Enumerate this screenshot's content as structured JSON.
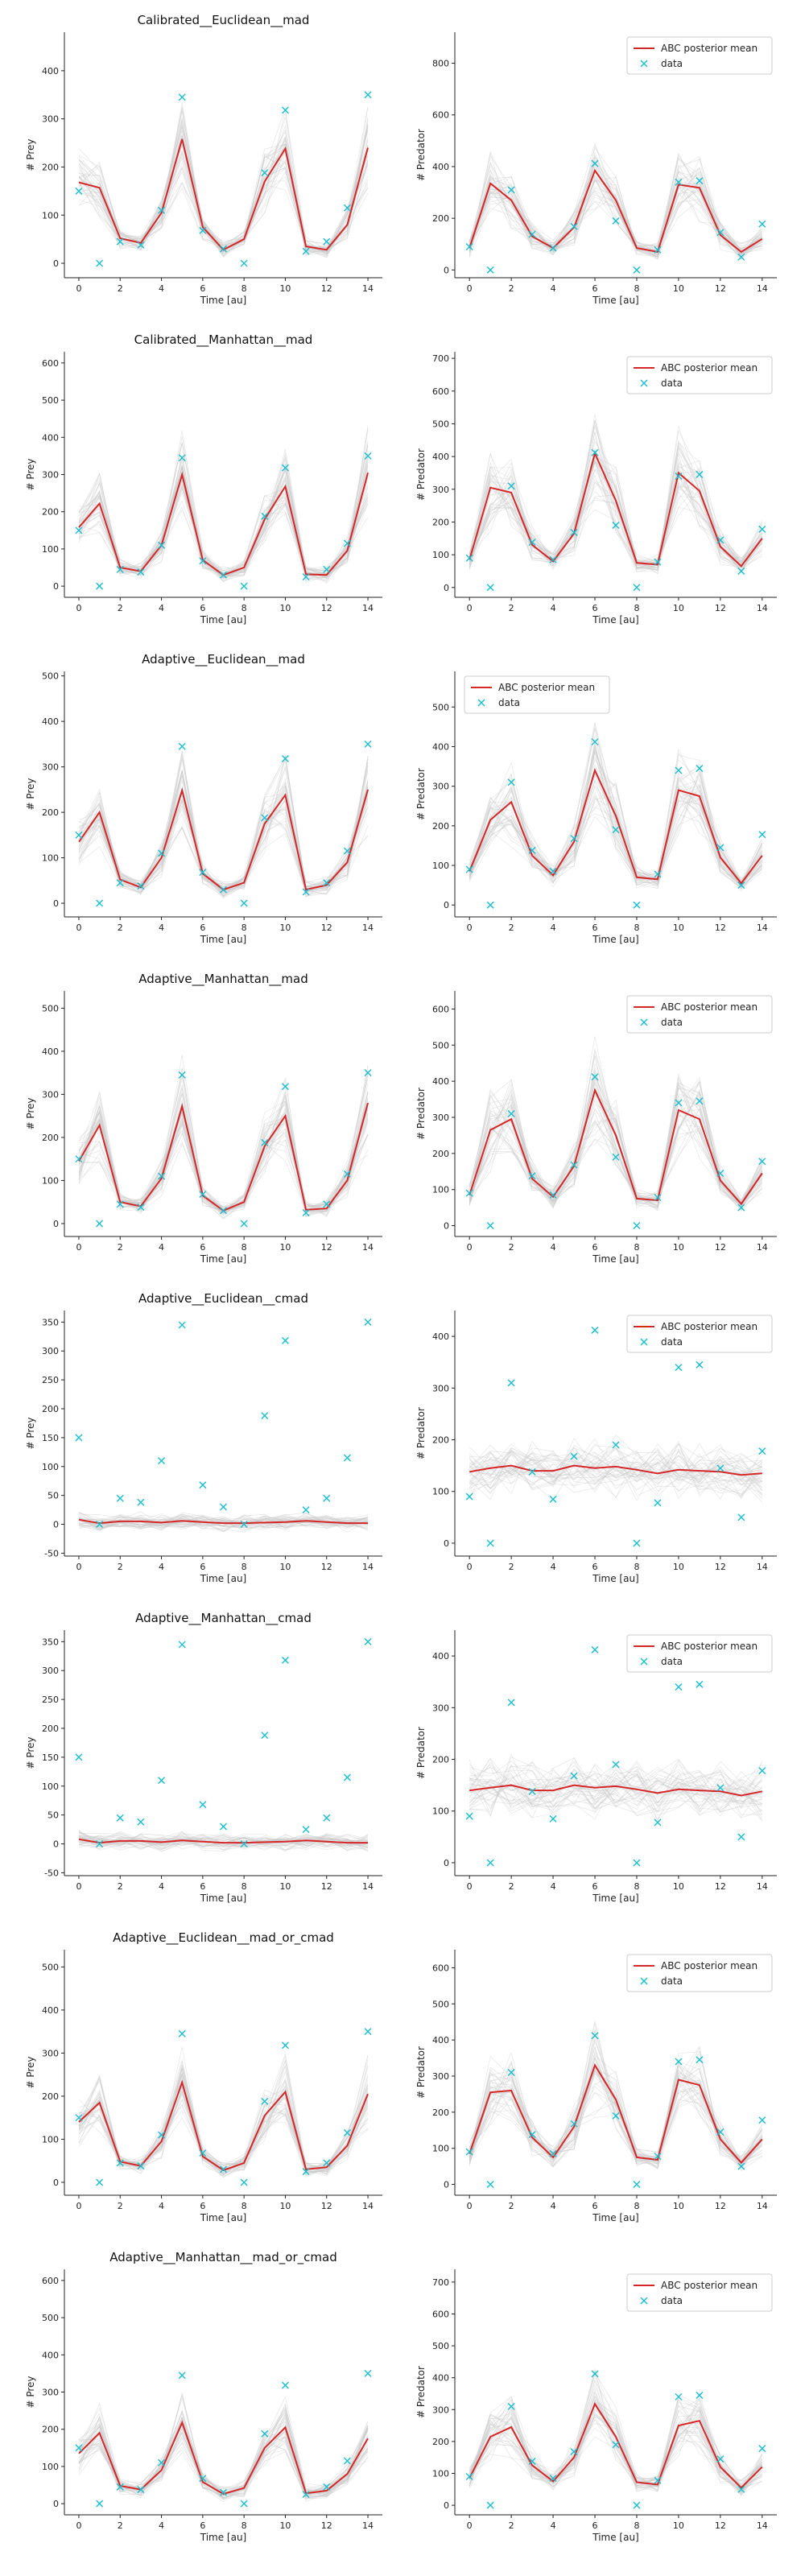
{
  "figure": {
    "xlabel": "Time [au]",
    "legend": {
      "mean_label": "ABC posterior mean",
      "data_label": "data"
    },
    "colors": {
      "mean": "#d62728",
      "data": "#17becf",
      "samples": "#c8c8c8",
      "axis": "#222222"
    }
  },
  "chart_data": [
    {
      "type": "line",
      "title": "Calibrated__Euclidean__mad",
      "ylabel": "# Prey",
      "xlim": [
        -0.7,
        14.7
      ],
      "ylim": [
        -30,
        480
      ],
      "yticks": [
        0,
        100,
        200,
        300,
        400
      ],
      "x": [
        0,
        1,
        2,
        3,
        4,
        5,
        6,
        7,
        8,
        9,
        10,
        11,
        12,
        13,
        14
      ],
      "series": [
        {
          "name": "ABC posterior mean",
          "values": [
            168,
            157,
            52,
            42,
            105,
            258,
            75,
            28,
            50,
            170,
            238,
            35,
            28,
            80,
            240
          ]
        },
        {
          "name": "data",
          "values": [
            150,
            0,
            45,
            38,
            110,
            345,
            68,
            30,
            0,
            188,
            318,
            25,
            45,
            115,
            350
          ]
        }
      ],
      "legend": "none"
    },
    {
      "type": "line",
      "title": "",
      "ylabel": "# Predator",
      "xlim": [
        -0.7,
        14.7
      ],
      "ylim": [
        -30,
        920
      ],
      "yticks": [
        0,
        200,
        400,
        600,
        800
      ],
      "x": [
        0,
        1,
        2,
        3,
        4,
        5,
        6,
        7,
        8,
        9,
        10,
        11,
        12,
        13,
        14
      ],
      "series": [
        {
          "name": "ABC posterior mean",
          "values": [
            85,
            335,
            270,
            130,
            85,
            165,
            385,
            270,
            85,
            70,
            330,
            318,
            135,
            70,
            120
          ]
        },
        {
          "name": "data",
          "values": [
            90,
            0,
            310,
            138,
            85,
            168,
            412,
            190,
            0,
            78,
            340,
            345,
            145,
            50,
            178
          ]
        }
      ],
      "legend": "top-right"
    },
    {
      "type": "line",
      "title": "Calibrated__Manhattan__mad",
      "ylabel": "# Prey",
      "xlim": [
        -0.7,
        14.7
      ],
      "ylim": [
        -30,
        630
      ],
      "yticks": [
        0,
        100,
        200,
        300,
        400,
        500,
        600
      ],
      "x": [
        0,
        1,
        2,
        3,
        4,
        5,
        6,
        7,
        8,
        9,
        10,
        11,
        12,
        13,
        14
      ],
      "series": [
        {
          "name": "ABC posterior mean",
          "values": [
            158,
            222,
            50,
            40,
            110,
            300,
            70,
            30,
            50,
            180,
            268,
            32,
            30,
            95,
            305
          ]
        },
        {
          "name": "data",
          "values": [
            150,
            0,
            45,
            38,
            110,
            345,
            68,
            30,
            0,
            188,
            318,
            25,
            45,
            115,
            350
          ]
        }
      ],
      "legend": "none"
    },
    {
      "type": "line",
      "title": "",
      "ylabel": "# Predator",
      "xlim": [
        -0.7,
        14.7
      ],
      "ylim": [
        -30,
        720
      ],
      "yticks": [
        0,
        100,
        200,
        300,
        400,
        500,
        600,
        700
      ],
      "x": [
        0,
        1,
        2,
        3,
        4,
        5,
        6,
        7,
        8,
        9,
        10,
        11,
        12,
        13,
        14
      ],
      "series": [
        {
          "name": "ABC posterior mean",
          "values": [
            85,
            305,
            290,
            130,
            80,
            165,
            410,
            265,
            75,
            70,
            350,
            295,
            125,
            65,
            150
          ]
        },
        {
          "name": "data",
          "values": [
            90,
            0,
            310,
            138,
            85,
            168,
            412,
            190,
            0,
            78,
            340,
            345,
            145,
            50,
            178
          ]
        }
      ],
      "legend": "top-right"
    },
    {
      "type": "line",
      "title": "Adaptive__Euclidean__mad",
      "ylabel": "# Prey",
      "xlim": [
        -0.7,
        14.7
      ],
      "ylim": [
        -30,
        510
      ],
      "yticks": [
        0,
        100,
        200,
        300,
        400,
        500
      ],
      "x": [
        0,
        1,
        2,
        3,
        4,
        5,
        6,
        7,
        8,
        9,
        10,
        11,
        12,
        13,
        14
      ],
      "series": [
        {
          "name": "ABC posterior mean",
          "values": [
            135,
            200,
            52,
            35,
            100,
            248,
            65,
            30,
            45,
            175,
            238,
            30,
            40,
            90,
            250
          ]
        },
        {
          "name": "data",
          "values": [
            150,
            0,
            45,
            38,
            110,
            345,
            68,
            30,
            0,
            188,
            318,
            25,
            45,
            115,
            350
          ]
        }
      ],
      "legend": "none"
    },
    {
      "type": "line",
      "title": "",
      "ylabel": "# Predator",
      "xlim": [
        -0.7,
        14.7
      ],
      "ylim": [
        -30,
        590
      ],
      "yticks": [
        0,
        100,
        200,
        300,
        400,
        500
      ],
      "x": [
        0,
        1,
        2,
        3,
        4,
        5,
        6,
        7,
        8,
        9,
        10,
        11,
        12,
        13,
        14
      ],
      "series": [
        {
          "name": "ABC posterior mean",
          "values": [
            85,
            215,
            260,
            125,
            75,
            160,
            340,
            225,
            70,
            65,
            290,
            275,
            120,
            55,
            125
          ]
        },
        {
          "name": "data",
          "values": [
            90,
            0,
            310,
            138,
            85,
            168,
            412,
            190,
            0,
            78,
            340,
            345,
            145,
            50,
            178
          ]
        }
      ],
      "legend": "top-left"
    },
    {
      "type": "line",
      "title": "Adaptive__Manhattan__mad",
      "ylabel": "# Prey",
      "xlim": [
        -0.7,
        14.7
      ],
      "ylim": [
        -30,
        540
      ],
      "yticks": [
        0,
        100,
        200,
        300,
        400,
        500
      ],
      "x": [
        0,
        1,
        2,
        3,
        4,
        5,
        6,
        7,
        8,
        9,
        10,
        11,
        12,
        13,
        14
      ],
      "series": [
        {
          "name": "ABC posterior mean",
          "values": [
            145,
            228,
            50,
            40,
            105,
            272,
            65,
            30,
            50,
            180,
            250,
            32,
            35,
            100,
            280
          ]
        },
        {
          "name": "data",
          "values": [
            150,
            0,
            45,
            38,
            110,
            345,
            68,
            30,
            0,
            188,
            318,
            25,
            45,
            115,
            350
          ]
        }
      ],
      "legend": "none"
    },
    {
      "type": "line",
      "title": "",
      "ylabel": "# Predator",
      "xlim": [
        -0.7,
        14.7
      ],
      "ylim": [
        -30,
        650
      ],
      "yticks": [
        0,
        100,
        200,
        300,
        400,
        500,
        600
      ],
      "x": [
        0,
        1,
        2,
        3,
        4,
        5,
        6,
        7,
        8,
        9,
        10,
        11,
        12,
        13,
        14
      ],
      "series": [
        {
          "name": "ABC posterior mean",
          "values": [
            85,
            265,
            295,
            130,
            80,
            165,
            375,
            250,
            75,
            70,
            320,
            295,
            125,
            60,
            145
          ]
        },
        {
          "name": "data",
          "values": [
            90,
            0,
            310,
            138,
            85,
            168,
            412,
            190,
            0,
            78,
            340,
            345,
            145,
            50,
            178
          ]
        }
      ],
      "legend": "top-right"
    },
    {
      "type": "line",
      "title": "Adaptive__Euclidean__cmad",
      "ylabel": "# Prey",
      "xlim": [
        -0.7,
        14.7
      ],
      "ylim": [
        -55,
        370
      ],
      "yticks": [
        -50,
        0,
        50,
        100,
        150,
        200,
        250,
        300,
        350
      ],
      "x": [
        0,
        1,
        2,
        3,
        4,
        5,
        6,
        7,
        8,
        9,
        10,
        11,
        12,
        13,
        14
      ],
      "series": [
        {
          "name": "ABC posterior mean",
          "values": [
            8,
            2,
            5,
            5,
            3,
            6,
            4,
            2,
            2,
            3,
            4,
            6,
            4,
            2,
            2
          ]
        },
        {
          "name": "data",
          "values": [
            150,
            0,
            45,
            38,
            110,
            345,
            68,
            30,
            0,
            188,
            318,
            25,
            45,
            115,
            350
          ]
        }
      ],
      "legend": "none"
    },
    {
      "type": "line",
      "title": "",
      "ylabel": "# Predator",
      "xlim": [
        -0.7,
        14.7
      ],
      "ylim": [
        -25,
        450
      ],
      "yticks": [
        0,
        100,
        200,
        300,
        400
      ],
      "x": [
        0,
        1,
        2,
        3,
        4,
        5,
        6,
        7,
        8,
        9,
        10,
        11,
        12,
        13,
        14
      ],
      "series": [
        {
          "name": "ABC posterior mean",
          "values": [
            138,
            145,
            150,
            140,
            140,
            150,
            145,
            148,
            142,
            135,
            142,
            140,
            138,
            132,
            135
          ]
        },
        {
          "name": "data",
          "values": [
            90,
            0,
            310,
            138,
            85,
            168,
            412,
            190,
            0,
            78,
            340,
            345,
            145,
            50,
            178
          ]
        }
      ],
      "legend": "top-right"
    },
    {
      "type": "line",
      "title": "Adaptive__Manhattan__cmad",
      "ylabel": "# Prey",
      "xlim": [
        -0.7,
        14.7
      ],
      "ylim": [
        -55,
        370
      ],
      "yticks": [
        -50,
        0,
        50,
        100,
        150,
        200,
        250,
        300,
        350
      ],
      "x": [
        0,
        1,
        2,
        3,
        4,
        5,
        6,
        7,
        8,
        9,
        10,
        11,
        12,
        13,
        14
      ],
      "series": [
        {
          "name": "ABC posterior mean",
          "values": [
            8,
            2,
            5,
            5,
            3,
            6,
            4,
            2,
            2,
            3,
            4,
            6,
            4,
            2,
            2
          ]
        },
        {
          "name": "data",
          "values": [
            150,
            0,
            45,
            38,
            110,
            345,
            68,
            30,
            0,
            188,
            318,
            25,
            45,
            115,
            350
          ]
        }
      ],
      "legend": "none"
    },
    {
      "type": "line",
      "title": "",
      "ylabel": "# Predator",
      "xlim": [
        -0.7,
        14.7
      ],
      "ylim": [
        -25,
        450
      ],
      "yticks": [
        0,
        100,
        200,
        300,
        400
      ],
      "x": [
        0,
        1,
        2,
        3,
        4,
        5,
        6,
        7,
        8,
        9,
        10,
        11,
        12,
        13,
        14
      ],
      "series": [
        {
          "name": "ABC posterior mean",
          "values": [
            140,
            145,
            150,
            140,
            140,
            150,
            145,
            148,
            142,
            135,
            142,
            140,
            138,
            130,
            138
          ]
        },
        {
          "name": "data",
          "values": [
            90,
            0,
            310,
            138,
            85,
            168,
            412,
            190,
            0,
            78,
            340,
            345,
            145,
            50,
            178
          ]
        }
      ],
      "legend": "top-right"
    },
    {
      "type": "line",
      "title": "Adaptive__Euclidean__mad_or_cmad",
      "ylabel": "# Prey",
      "xlim": [
        -0.7,
        14.7
      ],
      "ylim": [
        -30,
        540
      ],
      "yticks": [
        0,
        100,
        200,
        300,
        400,
        500
      ],
      "x": [
        0,
        1,
        2,
        3,
        4,
        5,
        6,
        7,
        8,
        9,
        10,
        11,
        12,
        13,
        14
      ],
      "series": [
        {
          "name": "ABC posterior mean",
          "values": [
            140,
            185,
            48,
            38,
            95,
            232,
            60,
            28,
            45,
            155,
            210,
            30,
            35,
            85,
            205
          ]
        },
        {
          "name": "data",
          "values": [
            150,
            0,
            45,
            38,
            110,
            345,
            68,
            30,
            0,
            188,
            318,
            25,
            45,
            115,
            350
          ]
        }
      ],
      "legend": "none"
    },
    {
      "type": "line",
      "title": "",
      "ylabel": "# Predator",
      "xlim": [
        -0.7,
        14.7
      ],
      "ylim": [
        -30,
        650
      ],
      "yticks": [
        0,
        100,
        200,
        300,
        400,
        500,
        600
      ],
      "x": [
        0,
        1,
        2,
        3,
        4,
        5,
        6,
        7,
        8,
        9,
        10,
        11,
        12,
        13,
        14
      ],
      "series": [
        {
          "name": "ABC posterior mean",
          "values": [
            85,
            255,
            260,
            130,
            75,
            160,
            330,
            235,
            75,
            68,
            290,
            275,
            125,
            60,
            125
          ]
        },
        {
          "name": "data",
          "values": [
            90,
            0,
            310,
            138,
            85,
            168,
            412,
            190,
            0,
            78,
            340,
            345,
            145,
            50,
            178
          ]
        }
      ],
      "legend": "top-right"
    },
    {
      "type": "line",
      "title": "Adaptive__Manhattan__mad_or_cmad",
      "ylabel": "# Prey",
      "xlim": [
        -0.7,
        14.7
      ],
      "ylim": [
        -30,
        630
      ],
      "yticks": [
        0,
        100,
        200,
        300,
        400,
        500,
        600
      ],
      "x": [
        0,
        1,
        2,
        3,
        4,
        5,
        6,
        7,
        8,
        9,
        10,
        11,
        12,
        13,
        14
      ],
      "series": [
        {
          "name": "ABC posterior mean",
          "values": [
            135,
            190,
            48,
            38,
            90,
            218,
            58,
            26,
            42,
            150,
            205,
            28,
            35,
            80,
            175
          ]
        },
        {
          "name": "data",
          "values": [
            150,
            0,
            45,
            38,
            110,
            345,
            68,
            30,
            0,
            188,
            318,
            25,
            45,
            115,
            350
          ]
        }
      ],
      "legend": "none"
    },
    {
      "type": "line",
      "title": "",
      "ylabel": "# Predator",
      "xlim": [
        -0.7,
        14.7
      ],
      "ylim": [
        -30,
        740
      ],
      "yticks": [
        0,
        100,
        200,
        300,
        400,
        500,
        600,
        700
      ],
      "x": [
        0,
        1,
        2,
        3,
        4,
        5,
        6,
        7,
        8,
        9,
        10,
        11,
        12,
        13,
        14
      ],
      "series": [
        {
          "name": "ABC posterior mean",
          "values": [
            85,
            215,
            245,
            125,
            75,
            150,
            318,
            215,
            72,
            65,
            250,
            265,
            120,
            55,
            120
          ]
        },
        {
          "name": "data",
          "values": [
            90,
            0,
            310,
            138,
            85,
            168,
            412,
            190,
            0,
            78,
            340,
            345,
            145,
            50,
            178
          ]
        }
      ],
      "legend": "top-right"
    }
  ]
}
